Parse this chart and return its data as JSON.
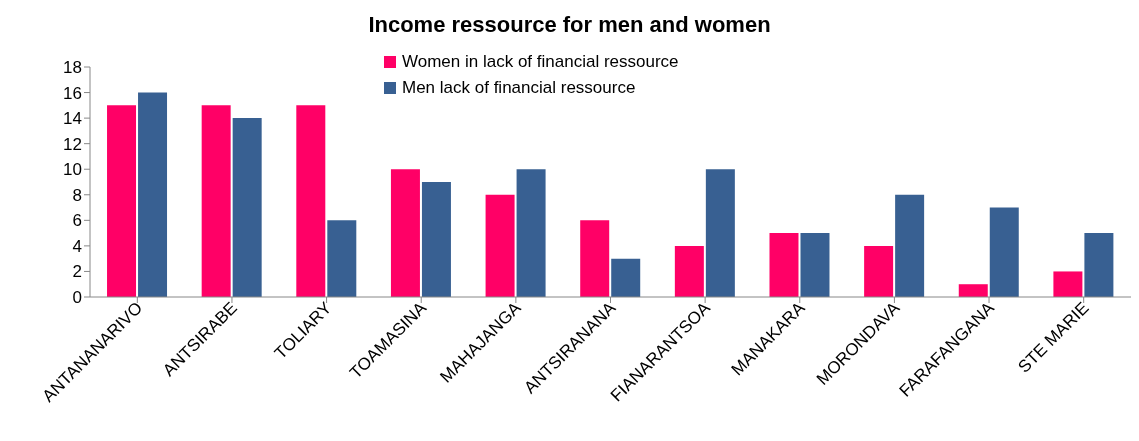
{
  "chart_data": {
    "type": "bar",
    "title": "Income ressource for men and women",
    "categories": [
      "ANTANANARIVO",
      "ANTSIRABE",
      "TOLIARY",
      "TOAMASINA",
      "MAHAJANGA",
      "ANTSIRANANA",
      "FIANARANTSOA",
      "MANAKARA",
      "MORONDAVA",
      "FARAFANGANA",
      "STE MARIE"
    ],
    "series": [
      {
        "name": "Women in lack of financial ressource",
        "color": "#ff0066",
        "values": [
          15,
          15,
          15,
          10,
          8,
          6,
          4,
          5,
          4,
          1,
          2
        ]
      },
      {
        "name": "Men lack of financial ressource",
        "color": "#386092",
        "values": [
          16,
          14,
          6,
          9,
          10,
          3,
          10,
          5,
          8,
          7,
          5
        ]
      }
    ],
    "ylim": [
      0,
      18
    ],
    "yticks": [
      0,
      2,
      4,
      6,
      8,
      10,
      12,
      14,
      16,
      18
    ],
    "grid": false,
    "legend": "top"
  }
}
